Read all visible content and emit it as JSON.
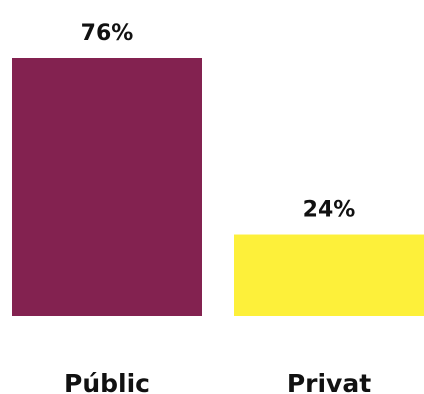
{
  "chart_data": {
    "type": "bar",
    "categories": [
      "Públic",
      "Privat"
    ],
    "values": [
      76,
      24
    ],
    "value_labels": [
      "76%",
      "24%"
    ],
    "colors": [
      "#832250",
      "#fdf03a"
    ],
    "ylim": [
      0,
      76
    ],
    "grid": false
  }
}
